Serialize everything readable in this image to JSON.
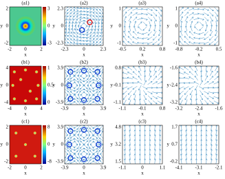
{
  "panels": [
    {
      "label": "(a1)",
      "x_label": "x",
      "y_label": "y",
      "x_ticks": [
        "-2",
        "0",
        "2"
      ],
      "y_ticks": [
        "2",
        "0",
        "-2"
      ],
      "colorbar_ticks": [
        "3",
        "0",
        "-3"
      ]
    },
    {
      "label": "(a2)",
      "x_label": "x",
      "y_label": "y",
      "x_ticks": [
        "-2.3",
        "0",
        "2.3"
      ],
      "y_ticks": [
        "2.3",
        "0",
        "-2.3"
      ]
    },
    {
      "label": "(a3)",
      "x_label": "x",
      "y_label": "y",
      "x_ticks": [
        "-0.5",
        "0.2",
        "0.8"
      ],
      "y_ticks": [
        "1",
        "0",
        "-1"
      ]
    },
    {
      "label": "(a4)",
      "x_label": "x",
      "y_label": "y",
      "x_ticks": [
        "-0.8",
        "-0.2",
        "0.5"
      ],
      "y_ticks": [
        "1",
        "0",
        "-1"
      ]
    },
    {
      "label": "(b1)",
      "x_label": "x",
      "y_label": "y",
      "x_ticks": [
        "-4",
        "0",
        "4"
      ],
      "y_ticks": [
        "4",
        "0",
        "-4"
      ],
      "colorbar_ticks": [
        "1",
        "0.5",
        "0"
      ]
    },
    {
      "label": "(b2)",
      "x_label": "x",
      "y_label": "y",
      "x_ticks": [
        "-3.9",
        "0",
        "3.9"
      ],
      "y_ticks": [
        "3.9",
        "0",
        "-3.9"
      ]
    },
    {
      "label": "(b3)",
      "x_label": "x",
      "y_label": "y",
      "x_ticks": [
        "-1.1",
        "-0.1",
        "0.8"
      ],
      "y_ticks": [
        "0.8",
        "-0.1",
        "-1.1"
      ]
    },
    {
      "label": "(b4)",
      "x_label": "x",
      "y_label": "y",
      "x_ticks": [
        "-3.2",
        "-2.4",
        "-1.6"
      ],
      "y_ticks": [
        "-1.6",
        "-2.4",
        "-3.2"
      ]
    },
    {
      "label": "(c1)",
      "x_label": "x",
      "y_label": "y",
      "x_ticks": [
        "-2",
        "0",
        "2"
      ],
      "y_ticks": [
        "2",
        "0",
        "-2"
      ],
      "colorbar_ticks": [
        "8",
        "0",
        "-8"
      ]
    },
    {
      "label": "(c2)",
      "x_label": "x",
      "y_label": "y",
      "x_ticks": [
        "-3.9",
        "0",
        "3.9"
      ],
      "y_ticks": [
        "3.9",
        "0",
        "-3.9"
      ]
    },
    {
      "label": "(c3)",
      "x_label": "x",
      "y_label": "y",
      "x_ticks": [
        "-1.1",
        "0",
        "1.1"
      ],
      "y_ticks": [
        "4.8",
        "3.2",
        "1.5"
      ]
    },
    {
      "label": "(c4)",
      "x_label": "x",
      "y_label": "y",
      "x_ticks": [
        "-4.1",
        "-3.1",
        "-2.1"
      ],
      "y_ticks": [
        "1.7",
        "0.7",
        "-0.2"
      ]
    }
  ]
}
